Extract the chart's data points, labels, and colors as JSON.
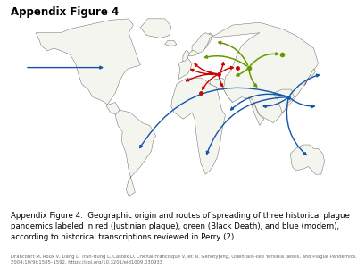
{
  "title": "Appendix Figure 4",
  "title_fontsize": 8.5,
  "title_fontweight": "bold",
  "caption_text": "Appendix Figure 4.  Geographic origin and routes of spreading of three historical plague\npandemics labeled in red (Justinian plague), green (Black Death), and blue (modern),\naccording to historical transcriptions reviewed in Perry (2).",
  "caption_fontsize": 6.2,
  "citation_text": "Drancourt M, Roux V, Dang L, Tran-Hung L, Castex D, Chenal-Francisque V, et al. Genotyping, Orientalis-like Yersinia pestis, and Plague Pandemics. Emerg Infect Dis.\n2004;10(9):1585–1592. https://doi.org/10.3201/eid1009.030933",
  "citation_fontsize": 3.8,
  "bg_color": "#ffffff",
  "map_bg": "#ffffff",
  "land_color": "#ffffff",
  "edge_color": "#555555",
  "red": "#cc0000",
  "green": "#669900",
  "blue": "#1155aa"
}
